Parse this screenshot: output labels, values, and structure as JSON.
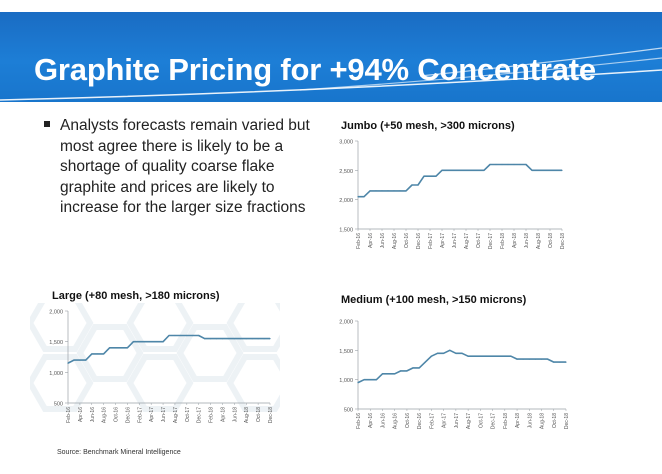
{
  "slide": {
    "title": "Graphite Pricing for +94% Concentrate",
    "bullet": "Analysts forecasts remain varied but most agree there is likely to be a shortage of quality coarse flake graphite and prices are likely to increase for the larger size fractions",
    "source": "Source: Benchmark Mineral Intelligence"
  },
  "chart_data": [
    {
      "type": "line",
      "title": "Jumbo (+50 mesh, >300 microns)",
      "x": [
        "Feb-16",
        "Mar-16",
        "Apr-16",
        "May-16",
        "Jun-16",
        "Jul-16",
        "Aug-16",
        "Sep-16",
        "Oct-16",
        "Nov-16",
        "Dec-16",
        "Jan-17",
        "Feb-17",
        "Mar-17",
        "Apr-17",
        "May-17",
        "Jun-17",
        "Jul-17",
        "Aug-17",
        "Sep-17",
        "Oct-17",
        "Nov-17",
        "Dec-17",
        "Jan-18",
        "Feb-18",
        "Mar-18",
        "Apr-18",
        "May-18",
        "Jun-18",
        "Jul-18",
        "Aug-18",
        "Sep-18",
        "Oct-18",
        "Nov-18",
        "Dec-18"
      ],
      "x_tick_labels": [
        "Feb-16",
        "Apr-16",
        "Jun-16",
        "Aug-16",
        "Oct-16",
        "Dec-16",
        "Feb-17",
        "Apr-17",
        "Jun-17",
        "Aug-17",
        "Oct-17",
        "Dec-17",
        "Feb-18",
        "Apr-18",
        "Jun-18",
        "Aug-18",
        "Oct-18",
        "Dec-18"
      ],
      "values": [
        2050,
        2050,
        2150,
        2150,
        2150,
        2150,
        2150,
        2150,
        2150,
        2250,
        2250,
        2400,
        2400,
        2400,
        2500,
        2500,
        2500,
        2500,
        2500,
        2500,
        2500,
        2500,
        2600,
        2600,
        2600,
        2600,
        2600,
        2600,
        2600,
        2500,
        2500,
        2500,
        2500,
        2500,
        2500
      ],
      "y_ticks": [
        "1,500",
        "2,000",
        "2,500",
        "3,000"
      ],
      "ylim": [
        1500,
        3000
      ],
      "line_color": "#4e86a8"
    },
    {
      "type": "line",
      "title": "Large (+80 mesh, >180 microns)",
      "x": [
        "Feb-16",
        "Mar-16",
        "Apr-16",
        "May-16",
        "Jun-16",
        "Jul-16",
        "Aug-16",
        "Sep-16",
        "Oct-16",
        "Nov-16",
        "Dec-16",
        "Jan-17",
        "Feb-17",
        "Mar-17",
        "Apr-17",
        "May-17",
        "Jun-17",
        "Jul-17",
        "Aug-17",
        "Sep-17",
        "Oct-17",
        "Nov-17",
        "Dec-17",
        "Jan-18",
        "Feb-18",
        "Mar-18",
        "Apr-18",
        "May-18",
        "Jun-18",
        "Jul-18",
        "Aug-18",
        "Sep-18",
        "Oct-18",
        "Nov-18",
        "Dec-18"
      ],
      "x_tick_labels": [
        "Feb-16",
        "Apr-16",
        "Jun-16",
        "Aug-16",
        "Oct-16",
        "Dec-16",
        "Feb-17",
        "Apr-17",
        "Jun-17",
        "Aug-17",
        "Oct-17",
        "Dec-17",
        "Feb-18",
        "Apr-18",
        "Jun-18",
        "Aug-18",
        "Oct-18",
        "Dec-18"
      ],
      "values": [
        1150,
        1200,
        1200,
        1200,
        1300,
        1300,
        1300,
        1400,
        1400,
        1400,
        1400,
        1500,
        1500,
        1500,
        1500,
        1500,
        1500,
        1600,
        1600,
        1600,
        1600,
        1600,
        1600,
        1550,
        1550,
        1550,
        1550,
        1550,
        1550,
        1550,
        1550,
        1550,
        1550,
        1550,
        1550
      ],
      "y_ticks": [
        "500",
        "1,000",
        "1,500",
        "2,000"
      ],
      "ylim": [
        500,
        2000
      ],
      "line_color": "#4e86a8"
    },
    {
      "type": "line",
      "title": "Medium (+100 mesh, >150 microns)",
      "x": [
        "Feb-16",
        "Mar-16",
        "Apr-16",
        "May-16",
        "Jun-16",
        "Jul-16",
        "Aug-16",
        "Sep-16",
        "Oct-16",
        "Nov-16",
        "Dec-16",
        "Jan-17",
        "Feb-17",
        "Mar-17",
        "Apr-17",
        "May-17",
        "Jun-17",
        "Jul-17",
        "Aug-17",
        "Sep-17",
        "Oct-17",
        "Nov-17",
        "Dec-17",
        "Jan-18",
        "Feb-18",
        "Mar-18",
        "Apr-18",
        "May-18",
        "Jun-18",
        "Jul-18",
        "Aug-18",
        "Sep-18",
        "Oct-18",
        "Nov-18",
        "Dec-18"
      ],
      "x_tick_labels": [
        "Feb-16",
        "Apr-16",
        "Jun-16",
        "Aug-16",
        "Oct-16",
        "Dec-16",
        "Feb-17",
        "Apr-17",
        "Jun-17",
        "Aug-17",
        "Oct-17",
        "Dec-17",
        "Feb-18",
        "Apr-18",
        "Jun-18",
        "Aug-18",
        "Oct-18",
        "Dec-18"
      ],
      "values": [
        950,
        1000,
        1000,
        1000,
        1100,
        1100,
        1100,
        1150,
        1150,
        1200,
        1200,
        1300,
        1400,
        1450,
        1450,
        1500,
        1450,
        1450,
        1400,
        1400,
        1400,
        1400,
        1400,
        1400,
        1400,
        1400,
        1350,
        1350,
        1350,
        1350,
        1350,
        1350,
        1300,
        1300,
        1300
      ],
      "y_ticks": [
        "500",
        "1,000",
        "1,500",
        "2,000"
      ],
      "ylim": [
        500,
        2000
      ],
      "line_color": "#4e86a8"
    }
  ]
}
